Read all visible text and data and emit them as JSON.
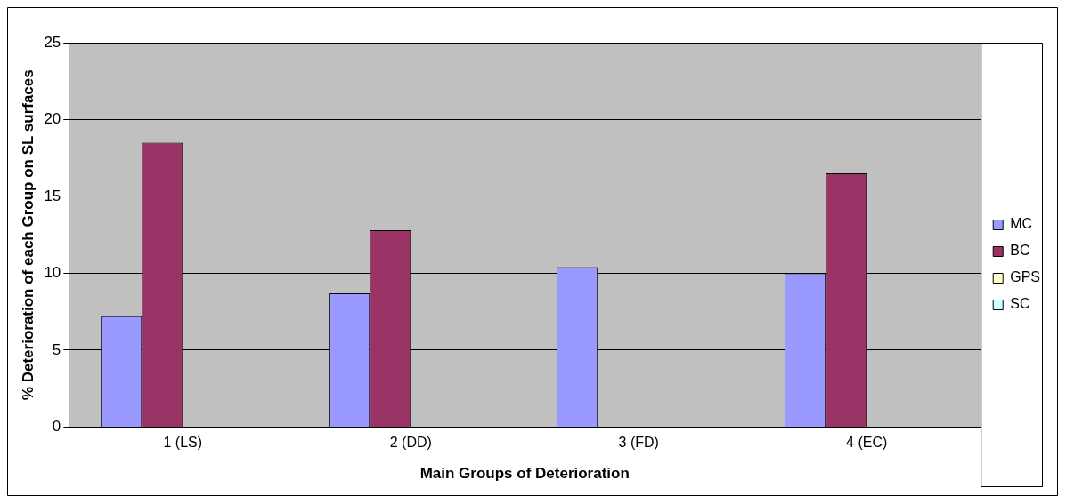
{
  "chart_data": {
    "type": "bar",
    "xlabel": "Main Groups of Deterioration",
    "ylabel": "% Deterioration of each Group on SL surfaces",
    "categories": [
      "1 (LS)",
      "2 (DD)",
      "3 (FD)",
      "4 (EC)"
    ],
    "series": [
      {
        "name": "MC",
        "color": "#9999ff",
        "values": [
          7.2,
          8.7,
          10.4,
          10.0
        ]
      },
      {
        "name": "BC",
        "color": "#993366",
        "values": [
          18.5,
          12.8,
          0,
          16.5
        ]
      },
      {
        "name": "GPS",
        "color": "#ffffcc",
        "values": [
          0,
          0,
          0,
          0
        ]
      },
      {
        "name": "SC",
        "color": "#ccffff",
        "values": [
          0,
          0,
          0,
          0
        ]
      }
    ],
    "ylim": [
      0,
      25
    ],
    "yticks": [
      0,
      5,
      10,
      15,
      20,
      25
    ],
    "grid": "y",
    "legend": "right"
  }
}
